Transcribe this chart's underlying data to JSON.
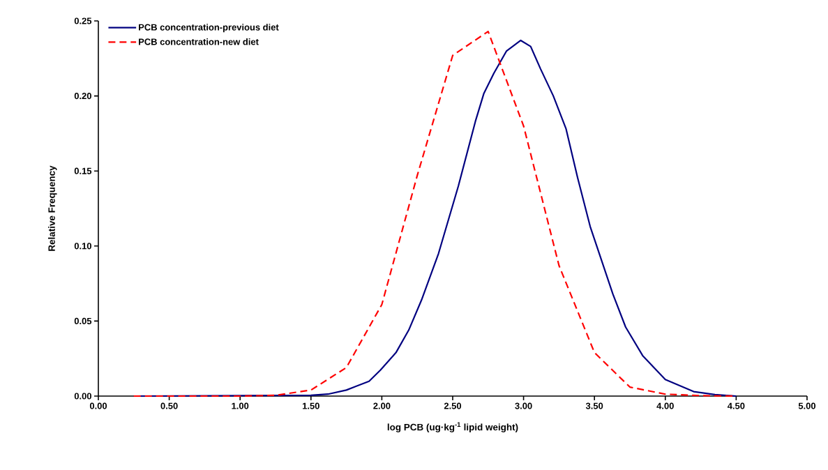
{
  "chart_data": {
    "type": "line",
    "xlabel": "log PCB (ug·kg$^{-1}$ lipid weight)",
    "ylabel": "Relative Frequency",
    "xlim": [
      0,
      5
    ],
    "ylim": [
      0,
      0.25
    ],
    "xticks": [
      {
        "value": 0,
        "label": "0.00"
      },
      {
        "value": 0.5,
        "label": "0.50"
      },
      {
        "value": 1,
        "label": "1.00"
      },
      {
        "value": 1.5,
        "label": "1.50"
      },
      {
        "value": 2,
        "label": "2.00"
      },
      {
        "value": 2.5,
        "label": "2.50"
      },
      {
        "value": 3,
        "label": "3.00"
      },
      {
        "value": 3.5,
        "label": "3.50"
      },
      {
        "value": 4,
        "label": "4.00"
      },
      {
        "value": 4.5,
        "label": "4.50"
      },
      {
        "value": 5,
        "label": "5.00"
      }
    ],
    "yticks": [
      {
        "value": 0,
        "label": "0.00"
      },
      {
        "value": 0.05,
        "label": "0.05"
      },
      {
        "value": 0.1,
        "label": "0.10"
      },
      {
        "value": 0.15,
        "label": "0.15"
      },
      {
        "value": 0.2,
        "label": "0.20"
      },
      {
        "value": 0.25,
        "label": "0.25"
      }
    ],
    "grid": false,
    "legend": "top left",
    "marker": "none",
    "series": [
      {
        "name": "PCB concentration-previous diet",
        "color": "#000080",
        "line_style": "solid",
        "x": [
          0.25,
          1.5,
          1.62,
          1.75,
          1.91,
          1.99,
          2.1,
          2.19,
          2.28,
          2.4,
          2.54,
          2.66,
          2.72,
          2.79,
          2.88,
          2.98,
          3.05,
          3.12,
          3.21,
          3.3,
          3.38,
          3.47,
          3.63,
          3.72,
          3.84,
          4.0,
          4.2,
          4.35,
          4.5
        ],
        "values": [
          0,
          0.0005,
          0.0013,
          0.004,
          0.0099,
          0.0173,
          0.029,
          0.044,
          0.064,
          0.095,
          0.14,
          0.183,
          0.2017,
          0.215,
          0.23,
          0.237,
          0.233,
          0.218,
          0.2,
          0.178,
          0.146,
          0.113,
          0.068,
          0.046,
          0.027,
          0.011,
          0.003,
          0.001,
          0
        ]
      },
      {
        "name": "PCB concentration-new diet",
        "color": "#ff0000",
        "line_style": "dashed",
        "x": [
          0.25,
          0.5,
          0.75,
          1.0,
          1.25,
          1.5,
          1.75,
          2.0,
          2.25,
          2.5,
          2.75,
          3.0,
          3.25,
          3.5,
          3.75,
          4.0,
          4.25,
          4.5
        ],
        "values": [
          0,
          0,
          0,
          0,
          0.0005,
          0.004,
          0.019,
          0.061,
          0.147,
          0.227,
          0.243,
          0.18,
          0.087,
          0.029,
          0.006,
          0.0013,
          0.0003,
          0
        ]
      }
    ]
  }
}
